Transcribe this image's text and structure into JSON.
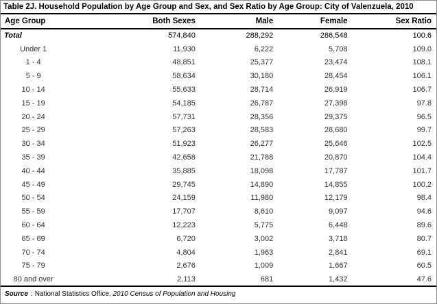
{
  "title": "Table 2J. Household Population by Age Group and Sex, and Sex Ratio by Age Group: City of Valenzuela, 2010",
  "table": {
    "columns": [
      "Age Group",
      "Both Sexes",
      "Male",
      "Female",
      "Sex Ratio"
    ],
    "rows": [
      {
        "age_group": "Total",
        "both_sexes": "574,840",
        "male": "288,292",
        "female": "286,548",
        "sex_ratio": "100.6",
        "is_total": true
      },
      {
        "age_group": "Under 1",
        "both_sexes": "11,930",
        "male": "6,222",
        "female": "5,708",
        "sex_ratio": "109.0"
      },
      {
        "age_group": "1 - 4",
        "both_sexes": "48,851",
        "male": "25,377",
        "female": "23,474",
        "sex_ratio": "108.1"
      },
      {
        "age_group": "5 - 9",
        "both_sexes": "58,634",
        "male": "30,180",
        "female": "28,454",
        "sex_ratio": "106.1"
      },
      {
        "age_group": "10 - 14",
        "both_sexes": "55,633",
        "male": "28,714",
        "female": "26,919",
        "sex_ratio": "106.7"
      },
      {
        "age_group": "15 - 19",
        "both_sexes": "54,185",
        "male": "26,787",
        "female": "27,398",
        "sex_ratio": "97.8"
      },
      {
        "age_group": "20 - 24",
        "both_sexes": "57,731",
        "male": "28,356",
        "female": "29,375",
        "sex_ratio": "96.5"
      },
      {
        "age_group": "25 - 29",
        "both_sexes": "57,263",
        "male": "28,583",
        "female": "28,680",
        "sex_ratio": "99.7"
      },
      {
        "age_group": "30 - 34",
        "both_sexes": "51,923",
        "male": "26,277",
        "female": "25,646",
        "sex_ratio": "102.5"
      },
      {
        "age_group": "35 - 39",
        "both_sexes": "42,658",
        "male": "21,788",
        "female": "20,870",
        "sex_ratio": "104.4"
      },
      {
        "age_group": "40 - 44",
        "both_sexes": "35,885",
        "male": "18,098",
        "female": "17,787",
        "sex_ratio": "101.7"
      },
      {
        "age_group": "45 - 49",
        "both_sexes": "29,745",
        "male": "14,890",
        "female": "14,855",
        "sex_ratio": "100.2"
      },
      {
        "age_group": "50 - 54",
        "both_sexes": "24,159",
        "male": "11,980",
        "female": "12,179",
        "sex_ratio": "98.4"
      },
      {
        "age_group": "55 - 59",
        "both_sexes": "17,707",
        "male": "8,610",
        "female": "9,097",
        "sex_ratio": "94.6"
      },
      {
        "age_group": "60 - 64",
        "both_sexes": "12,223",
        "male": "5,775",
        "female": "6,448",
        "sex_ratio": "89.6"
      },
      {
        "age_group": "65 - 69",
        "both_sexes": "6,720",
        "male": "3,002",
        "female": "3,718",
        "sex_ratio": "80.7"
      },
      {
        "age_group": "70 - 74",
        "both_sexes": "4,804",
        "male": "1,963",
        "female": "2,841",
        "sex_ratio": "69.1"
      },
      {
        "age_group": "75 - 79",
        "both_sexes": "2,676",
        "male": "1,009",
        "female": "1,667",
        "sex_ratio": "60.5"
      },
      {
        "age_group": "80 and over",
        "both_sexes": "2,113",
        "male": "681",
        "female": "1,432",
        "sex_ratio": "47.6"
      }
    ]
  },
  "source": {
    "label": "Source",
    "separator": ":",
    "organization": "National Statistics Office,",
    "citation": "2010 Census of Population and Housing"
  }
}
